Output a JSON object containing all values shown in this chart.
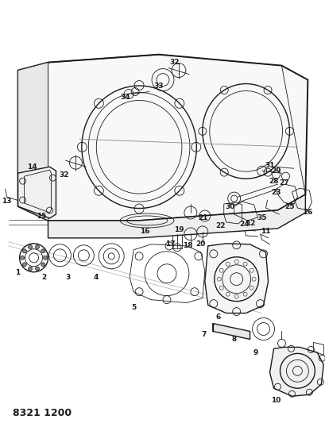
{
  "title": "8321 1200",
  "background_color": "#ffffff",
  "line_color": "#1a1a1a",
  "fig_width": 4.1,
  "fig_height": 5.33,
  "dpi": 100
}
